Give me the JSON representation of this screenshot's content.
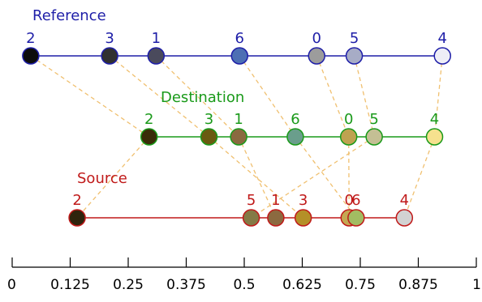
{
  "axis": {
    "ticks": [
      {
        "value": 0,
        "label": "0"
      },
      {
        "value": 0.125,
        "label": "0.125"
      },
      {
        "value": 0.25,
        "label": "0.25"
      },
      {
        "value": 0.375,
        "label": "0.375"
      },
      {
        "value": 0.5,
        "label": "0.5"
      },
      {
        "value": 0.625,
        "label": "0.625"
      },
      {
        "value": 0.75,
        "label": "0.75"
      },
      {
        "value": 0.875,
        "label": "0.875"
      },
      {
        "value": 1,
        "label": "1"
      }
    ]
  },
  "rows": [
    {
      "key": "reference",
      "title": "Reference",
      "color": "#1f1fa8",
      "nodes": [
        {
          "label": "2",
          "value": 0.04,
          "fill": "#0d0d0d"
        },
        {
          "label": "3",
          "value": 0.21,
          "fill": "#303030"
        },
        {
          "label": "1",
          "value": 0.31,
          "fill": "#4a4a5c"
        },
        {
          "label": "6",
          "value": 0.49,
          "fill": "#4d6fb4"
        },
        {
          "label": "0",
          "value": 0.656,
          "fill": "#9c9c9c"
        },
        {
          "label": "5",
          "value": 0.737,
          "fill": "#a7acc6"
        },
        {
          "label": "4",
          "value": 0.927,
          "fill": "#eeeef6"
        }
      ]
    },
    {
      "key": "destination",
      "title": "Destination",
      "color": "#1a9a1a",
      "nodes": [
        {
          "label": "2",
          "value": 0.295,
          "fill": "#3a2c08"
        },
        {
          "label": "3",
          "value": 0.424,
          "fill": "#6a5a10"
        },
        {
          "label": "1",
          "value": 0.488,
          "fill": "#8a6a40"
        },
        {
          "label": "6",
          "value": 0.61,
          "fill": "#6a9e8c"
        },
        {
          "label": "0",
          "value": 0.725,
          "fill": "#bfa250"
        },
        {
          "label": "5",
          "value": 0.78,
          "fill": "#c4bf94"
        },
        {
          "label": "4",
          "value": 0.91,
          "fill": "#f6e18e"
        }
      ]
    },
    {
      "key": "source",
      "title": "Source",
      "color": "#c01a1a",
      "nodes": [
        {
          "label": "2",
          "value": 0.14,
          "fill": "#2f240d"
        },
        {
          "label": "5",
          "value": 0.515,
          "fill": "#847a46"
        },
        {
          "label": "1",
          "value": 0.568,
          "fill": "#8c6a40"
        },
        {
          "label": "3",
          "value": 0.627,
          "fill": "#b49028"
        },
        {
          "label": "0",
          "value": 0.726,
          "fill": "#c4a852"
        },
        {
          "label": "6",
          "value": 0.741,
          "fill": "#a2bc62"
        },
        {
          "label": "4",
          "value": 0.845,
          "fill": "#d2d2d2"
        }
      ]
    }
  ],
  "links": [
    {
      "from": "reference",
      "to": "destination",
      "pairs": [
        "2",
        "3",
        "1",
        "6",
        "0",
        "5",
        "4"
      ]
    },
    {
      "from": "destination",
      "to": "source",
      "pairs": [
        "2",
        "3",
        "1",
        "6",
        "0",
        "5",
        "4"
      ]
    }
  ],
  "colors": {
    "link": "#f0c070",
    "axis": "#000000"
  }
}
